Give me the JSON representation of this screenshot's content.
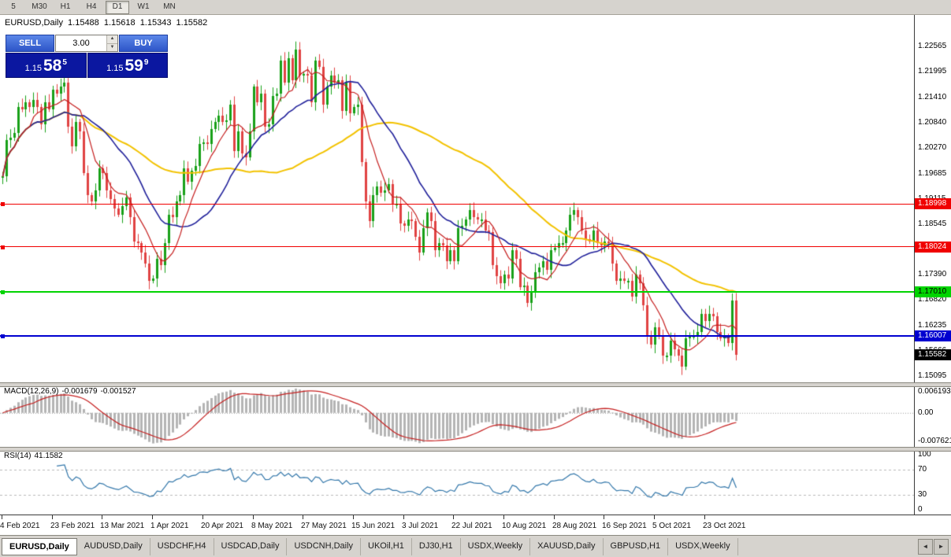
{
  "toolbar": {
    "timeframes": [
      {
        "label": "5",
        "active": false
      },
      {
        "label": "M30",
        "active": false
      },
      {
        "label": "H1",
        "active": false
      },
      {
        "label": "H4",
        "active": false
      },
      {
        "label": "D1",
        "active": true
      },
      {
        "label": "W1",
        "active": false
      },
      {
        "label": "MN",
        "active": false
      }
    ]
  },
  "chart_header": {
    "symbol": "EURUSD,Daily",
    "open": "1.15488",
    "high": "1.15618",
    "low": "1.15343",
    "close": "1.15582"
  },
  "trade_panel": {
    "sell_label": "SELL",
    "buy_label": "BUY",
    "lot_value": "3.00",
    "lot_up_icon": "▲",
    "lot_down_icon": "▼",
    "sell_price": {
      "prefix": "1.15",
      "big": "58",
      "sup": "5"
    },
    "buy_price": {
      "prefix": "1.15",
      "big": "59",
      "sup": "9"
    }
  },
  "chart_data": {
    "type": "candlestick",
    "symbol": "EURUSD",
    "timeframe": "Daily",
    "price_range": [
      1.1495,
      1.233
    ],
    "candle_spacing": 4.9,
    "candle_width": 3,
    "first_open": 1.196,
    "closes": [
      1.1962,
      1.2045,
      1.205,
      1.206,
      1.212,
      1.2115,
      1.213,
      1.212,
      1.2135,
      1.212,
      1.208,
      1.213,
      1.2115,
      1.2158,
      1.215,
      1.2165,
      1.2175,
      1.2075,
      1.203,
      1.2085,
      1.2065,
      1.197,
      1.192,
      1.1905,
      1.193,
      1.198,
      1.197,
      1.193,
      1.191,
      1.189,
      1.1875,
      1.1895,
      1.1915,
      1.187,
      1.1815,
      1.181,
      1.179,
      1.1765,
      1.1725,
      1.173,
      1.1775,
      1.176,
      1.181,
      1.1875,
      1.187,
      1.1905,
      1.192,
      1.198,
      1.195,
      1.1975,
      1.1985,
      1.2035,
      1.204,
      1.2035,
      1.207,
      1.2085,
      1.21,
      1.2085,
      1.209,
      1.2125,
      1.202,
      1.2065,
      1.2015,
      1.2005,
      1.2065,
      1.2165,
      1.213,
      1.215,
      1.2075,
      1.208,
      1.2145,
      1.215,
      1.2225,
      1.2175,
      1.223,
      1.218,
      1.225,
      1.219,
      1.2195,
      1.219,
      1.213,
      1.2225,
      1.221,
      1.2125,
      1.2165,
      1.219,
      1.2175,
      1.218,
      1.211,
      1.2175,
      1.2105,
      1.212,
      1.2125,
      1.1995,
      1.1905,
      1.186,
      1.192,
      1.194,
      1.1925,
      1.193,
      1.1945,
      1.19,
      1.19,
      1.1855,
      1.185,
      1.1865,
      1.186,
      1.1825,
      1.179,
      1.1845,
      1.188,
      1.186,
      1.1795,
      1.181,
      1.1805,
      1.177,
      1.1795,
      1.177,
      1.1845,
      1.185,
      1.1865,
      1.1885,
      1.187,
      1.1865,
      1.1865,
      1.184,
      1.1835,
      1.176,
      1.1735,
      1.172,
      1.174,
      1.173,
      1.1795,
      1.1775,
      1.171,
      1.1715,
      1.1675,
      1.17,
      1.1745,
      1.1755,
      1.177,
      1.175,
      1.1795,
      1.18,
      1.181,
      1.181,
      1.184,
      1.1875,
      1.1885,
      1.187,
      1.184,
      1.182,
      1.1815,
      1.184,
      1.181,
      1.1805,
      1.1815,
      1.181,
      1.1765,
      1.1725,
      1.173,
      1.1725,
      1.1725,
      1.169,
      1.174,
      1.172,
      1.167,
      1.16,
      1.158,
      1.162,
      1.16,
      1.1555,
      1.1555,
      1.159,
      1.157,
      1.1555,
      1.153,
      1.1595,
      1.16,
      1.16,
      1.161,
      1.165,
      1.1635,
      1.165,
      1.1645,
      1.161,
      1.1595,
      1.16,
      1.1585,
      1.168,
      1.1558
    ],
    "colors": {
      "up": "#18a018",
      "down": "#e04343",
      "ma_fast": "#c51f1f",
      "ma_mid": "#20209a",
      "ma_slow": "#f2c200",
      "macd_bar": "#b4b4b4",
      "macd_signal": "#c51f1f",
      "rsi": "#3377aa"
    },
    "moving_averages": [
      {
        "period": 55,
        "color_key": "ma_slow",
        "width": 2
      },
      {
        "period": 21,
        "color_key": "ma_mid",
        "width": 1.6
      },
      {
        "period": 8,
        "color_key": "ma_fast",
        "width": 1.2
      }
    ],
    "price_axis_ticks": [
      "1.22565",
      "1.21995",
      "1.21410",
      "1.20840",
      "1.20270",
      "1.19685",
      "1.19115",
      "1.18545",
      "1.17960",
      "1.17390",
      "1.16820",
      "1.16235",
      "1.15666",
      "1.15095"
    ],
    "hlines": [
      {
        "value": 1.18998,
        "label": "1.18998",
        "color": "#f00000",
        "text": "#ffffff",
        "thickness": 1
      },
      {
        "value": 1.18024,
        "label": "1.18024",
        "color": "#f00000",
        "text": "#ffffff",
        "thickness": 1
      },
      {
        "value": 1.1701,
        "label": "1.17010",
        "color": "#00d400",
        "text": "#000000",
        "thickness": 2
      },
      {
        "value": 1.16007,
        "label": "1.16007",
        "color": "#0000d0",
        "text": "#ffffff",
        "thickness": 2
      }
    ],
    "current_price": {
      "value": 1.15582,
      "label": "1.15582",
      "bg": "#000000",
      "text": "#ffffff"
    },
    "x_labels": [
      "4 Feb 2021",
      "23 Feb 2021",
      "13 Mar 2021",
      "1 Apr 2021",
      "20 Apr 2021",
      "8 May 2021",
      "27 May 2021",
      "15 Jun 2021",
      "3 Jul 2021",
      "22 Jul 2021",
      "10 Aug 2021",
      "28 Aug 2021",
      "16 Sep 2021",
      "5 Oct 2021",
      "23 Oct 2021"
    ],
    "x_label_step": 13,
    "macd": {
      "name": "MACD(12,26,9)",
      "value_main": "-0.001679",
      "value_signal": "-0.001527",
      "fast": 12,
      "slow": 26,
      "signal": 9,
      "range": [
        -0.0082,
        0.0066
      ],
      "axis_labels": [
        "0.006193",
        "0.00",
        "-0.007621"
      ]
    },
    "rsi": {
      "name": "RSI(14)",
      "value": "41.1582",
      "period": 14,
      "range": [
        0,
        100
      ],
      "levels": [
        70,
        30
      ],
      "axis_labels": [
        "100",
        "70",
        "30",
        "0"
      ]
    }
  },
  "tabs": [
    {
      "label": "EURUSD,Daily",
      "active": true
    },
    {
      "label": "AUDUSD,Daily",
      "active": false
    },
    {
      "label": "USDCHF,H4",
      "active": false
    },
    {
      "label": "USDCAD,Daily",
      "active": false
    },
    {
      "label": "USDCNH,Daily",
      "active": false
    },
    {
      "label": "UKOil,H1",
      "active": false
    },
    {
      "label": "DJ30,H1",
      "active": false
    },
    {
      "label": "USDX,Weekly",
      "active": false
    },
    {
      "label": "XAUUSD,Daily",
      "active": false
    },
    {
      "label": "GBPUSD,H1",
      "active": false
    },
    {
      "label": "USDX,Weekly",
      "active": false
    }
  ],
  "tab_scroll": {
    "left": "◄",
    "right": "►"
  }
}
